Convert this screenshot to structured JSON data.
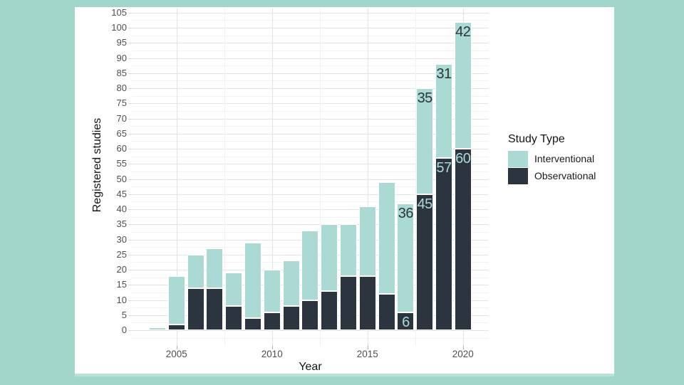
{
  "window": {
    "background_color": "#a3d6cb",
    "panel_color": "#ffffff"
  },
  "chart_data": {
    "type": "bar",
    "stacked": true,
    "xlabel": "Year",
    "ylabel": "Registered studies",
    "x": [
      2004,
      2005,
      2006,
      2007,
      2008,
      2009,
      2010,
      2011,
      2012,
      2013,
      2014,
      2015,
      2016,
      2017,
      2018,
      2019,
      2020
    ],
    "series": [
      {
        "name": "Interventional",
        "color": "#aadad3",
        "values": [
          1,
          16,
          11,
          13,
          11,
          25,
          14,
          15,
          23,
          22,
          17,
          23,
          37,
          36,
          35,
          31,
          42
        ]
      },
      {
        "name": "Observational",
        "color": "#2b343f",
        "values": [
          0,
          2,
          14,
          14,
          8,
          4,
          6,
          8,
          10,
          13,
          18,
          18,
          12,
          6,
          45,
          57,
          60
        ]
      }
    ],
    "totals": [
      1,
      18,
      25,
      27,
      19,
      29,
      20,
      23,
      33,
      35,
      35,
      41,
      49,
      42,
      80,
      88,
      102
    ],
    "labeled_years": [
      2017,
      2018,
      2019,
      2020
    ],
    "bar_label_values": {
      "Interventional": {
        "2017": "36",
        "2018": "35",
        "2019": "31",
        "2020": "42"
      },
      "Observational": {
        "2017": "6",
        "2018": "45",
        "2019": "57",
        "2020": "60"
      }
    },
    "y_ticks": [
      0,
      5,
      10,
      15,
      20,
      25,
      30,
      35,
      40,
      45,
      50,
      55,
      60,
      65,
      70,
      75,
      80,
      85,
      90,
      95,
      100,
      105
    ],
    "x_ticks": [
      2005,
      2010,
      2015,
      2020
    ],
    "x_minor_ticks": [
      2007.5,
      2012.5,
      2017.5
    ],
    "ylim": [
      0,
      105
    ],
    "grid": true,
    "legend": {
      "title": "Study Type",
      "entries": [
        {
          "label": "Interventional",
          "color": "#aadad3"
        },
        {
          "label": "Observational",
          "color": "#2b343f"
        }
      ],
      "position": "right"
    },
    "colors": {
      "grid_major": "#e3e3e3",
      "grid_minor": "#f2f2f2",
      "tick_text": "#4f4f4f",
      "axis_title_text": "#141414",
      "label_on_light": "#2b343f",
      "label_on_dark": "#aadad3"
    }
  }
}
